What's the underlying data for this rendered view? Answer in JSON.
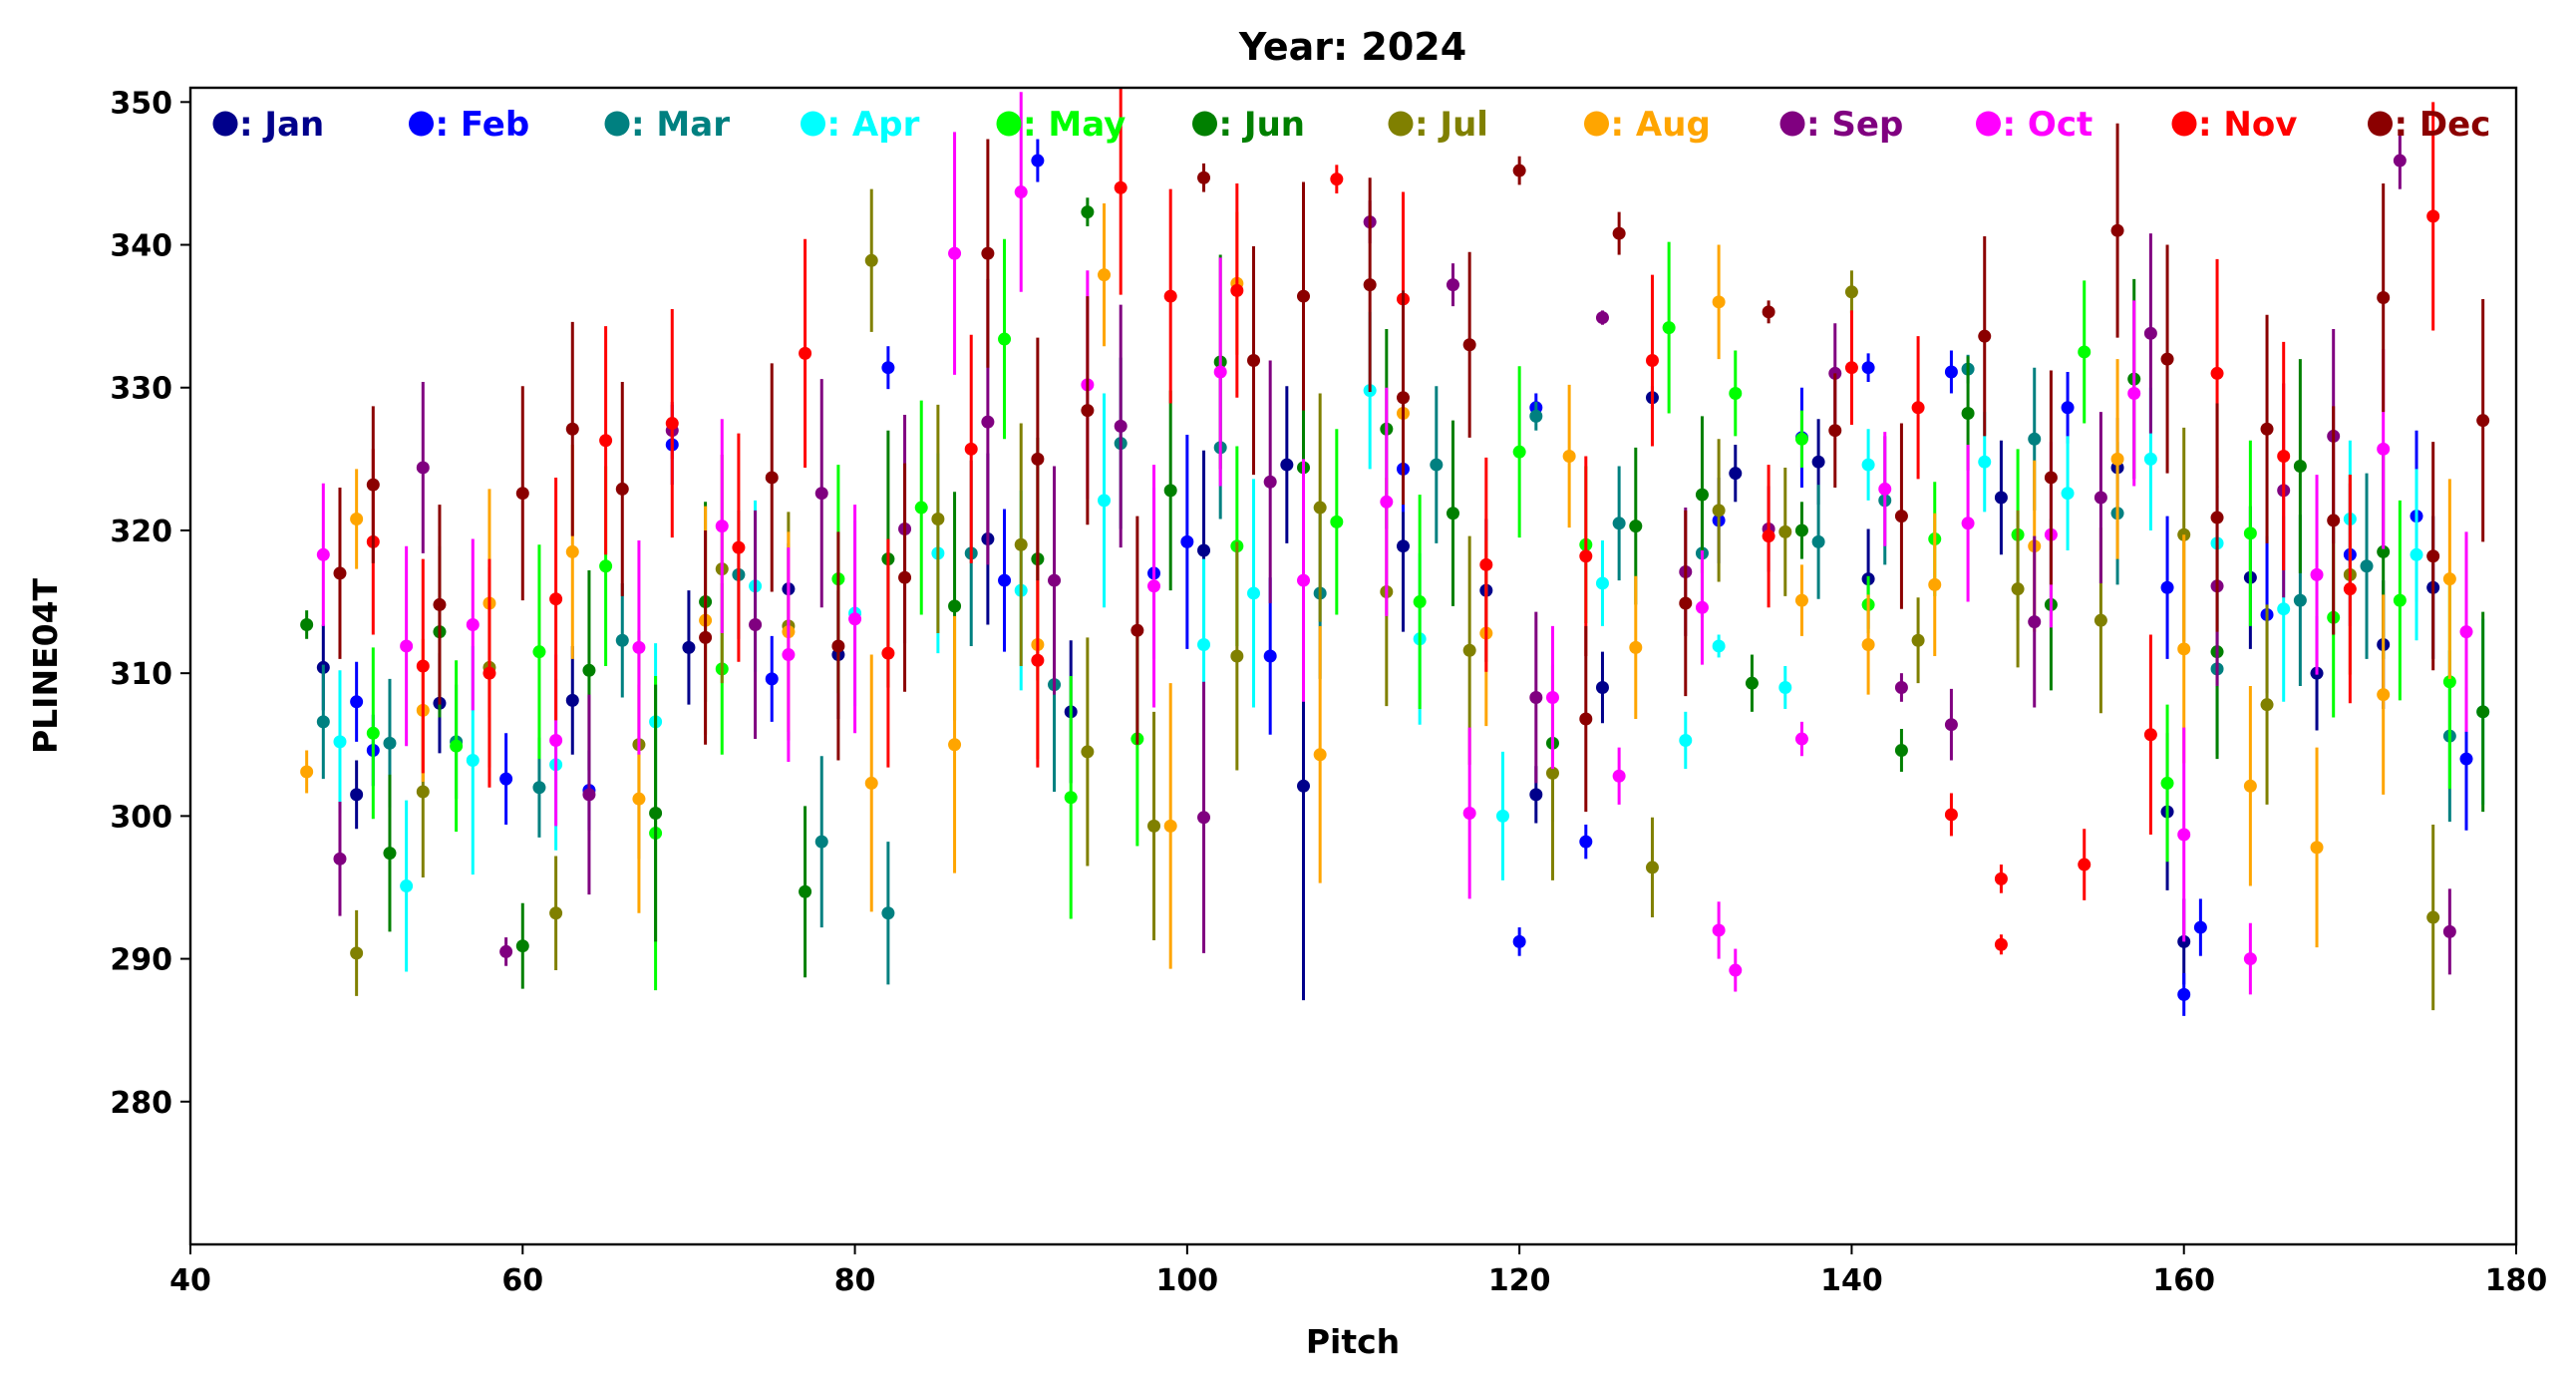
{
  "chart_data": {
    "type": "scatter",
    "title": "Year: 2024",
    "xlabel": "Pitch",
    "ylabel": "PLINE04T",
    "xlim": [
      40,
      180
    ],
    "ylim": [
      270,
      351
    ],
    "xticks": [
      40,
      60,
      80,
      100,
      120,
      140,
      160,
      180
    ],
    "yticks": [
      280,
      290,
      300,
      310,
      320,
      330,
      340,
      350
    ],
    "legend_position": "top",
    "series": [
      {
        "name": ": Jan",
        "color": "#00008b",
        "x": [
          48,
          50,
          55,
          63,
          70,
          76,
          79,
          88,
          93,
          101,
          106,
          107,
          113,
          118,
          121,
          125,
          128,
          133,
          138,
          141,
          149,
          156,
          159,
          160,
          164,
          168,
          172,
          175
        ],
        "y": [
          310.4,
          301.5,
          307.9,
          308.1,
          311.8,
          315.9,
          311.3,
          319.4,
          307.3,
          318.6,
          324.6,
          302.1,
          318.9,
          315.8,
          301.5,
          309.0,
          329.3,
          324.0,
          324.8,
          316.6,
          322.3,
          324.4,
          300.3,
          291.2,
          316.7,
          310.0,
          312.0,
          316.0
        ],
        "err": [
          3.0,
          2.4,
          3.5,
          3.8,
          4.0,
          3.2,
          4.5,
          6.0,
          5.0,
          7.0,
          5.5,
          15.0,
          6.0,
          5.0,
          2.0,
          2.5,
          0.8,
          2.0,
          3.0,
          3.5,
          4.0,
          3.5,
          5.5,
          3.0,
          5.0,
          4.0,
          4.5,
          5.0
        ]
      },
      {
        "name": ": Feb",
        "color": "#0000ff",
        "x": [
          50,
          51,
          59,
          64,
          69,
          75,
          82,
          89,
          91,
          98,
          100,
          105,
          113,
          120,
          121,
          124,
          132,
          137,
          141,
          146,
          153,
          159,
          160,
          161,
          165,
          170,
          174,
          177
        ],
        "y": [
          308.0,
          304.6,
          302.6,
          301.8,
          326.0,
          309.6,
          331.4,
          316.5,
          345.9,
          317.0,
          319.2,
          311.2,
          324.3,
          291.2,
          328.6,
          298.2,
          320.7,
          326.5,
          331.4,
          331.1,
          328.6,
          316.0,
          287.5,
          292.2,
          314.1,
          318.3,
          321.0,
          304.0
        ],
        "err": [
          2.8,
          2.5,
          3.2,
          2.8,
          2.8,
          3.0,
          1.5,
          5.0,
          1.5,
          6.0,
          7.5,
          5.5,
          3.0,
          1.0,
          1.0,
          1.2,
          3.0,
          3.5,
          1.0,
          1.5,
          2.5,
          5.0,
          1.5,
          2.0,
          5.5,
          5.0,
          6.0,
          5.0
        ]
      },
      {
        "name": ": Mar",
        "color": "#008080",
        "x": [
          48,
          52,
          56,
          61,
          66,
          73,
          78,
          82,
          87,
          92,
          96,
          102,
          108,
          115,
          121,
          126,
          131,
          138,
          142,
          147,
          151,
          156,
          162,
          167,
          171,
          176
        ],
        "y": [
          306.6,
          305.1,
          305.2,
          302.0,
          312.3,
          316.9,
          298.2,
          293.2,
          318.4,
          309.2,
          326.1,
          325.8,
          315.6,
          324.6,
          328.0,
          320.5,
          318.4,
          319.2,
          322.1,
          331.3,
          326.4,
          321.2,
          310.3,
          315.1,
          317.5,
          305.6
        ],
        "err": [
          4.0,
          4.5,
          4.0,
          3.5,
          4.0,
          4.5,
          6.0,
          5.0,
          6.5,
          7.5,
          6.0,
          5.0,
          6.0,
          5.5,
          1.0,
          4.0,
          4.5,
          4.0,
          4.5,
          1.0,
          5.0,
          5.0,
          6.0,
          6.0,
          6.5,
          6.0
        ]
      },
      {
        "name": ": Apr",
        "color": "#00ffff",
        "x": [
          49,
          53,
          57,
          62,
          68,
          74,
          80,
          85,
          90,
          95,
          101,
          104,
          111,
          114,
          119,
          125,
          130,
          132,
          136,
          141,
          148,
          153,
          158,
          162,
          166,
          170,
          174,
          178
        ],
        "y": [
          305.2,
          295.1,
          303.9,
          303.6,
          306.6,
          316.1,
          314.2,
          318.4,
          315.8,
          322.1,
          312.0,
          315.6,
          329.8,
          312.4,
          300.0,
          316.3,
          305.3,
          311.9,
          309.0,
          324.6,
          324.8,
          322.6,
          325.0,
          319.1,
          314.5,
          320.8,
          318.3,
          307.3
        ],
        "err": [
          5.0,
          6.0,
          8.0,
          6.0,
          5.5,
          6.0,
          6.5,
          7.0,
          7.0,
          7.5,
          6.0,
          8.0,
          5.5,
          6.0,
          4.5,
          3.0,
          2.0,
          0.8,
          1.5,
          2.5,
          3.5,
          4.0,
          5.0,
          6.0,
          6.5,
          5.5,
          6.0,
          6.5
        ]
      },
      {
        "name": ": May",
        "color": "#00ff00",
        "x": [
          51,
          56,
          61,
          65,
          68,
          72,
          79,
          84,
          89,
          93,
          97,
          103,
          109,
          114,
          120,
          124,
          129,
          133,
          137,
          141,
          145,
          150,
          154,
          159,
          164,
          169,
          173,
          176
        ],
        "y": [
          305.8,
          304.9,
          311.5,
          317.5,
          298.8,
          310.3,
          316.6,
          321.6,
          333.4,
          301.3,
          305.4,
          318.9,
          320.6,
          315.0,
          325.5,
          319.0,
          334.2,
          329.6,
          326.4,
          314.8,
          319.4,
          319.7,
          332.5,
          302.3,
          319.8,
          313.9,
          315.1,
          309.4
        ],
        "err": [
          6.0,
          6.0,
          7.5,
          7.0,
          11.0,
          6.0,
          8.0,
          7.5,
          7.0,
          8.5,
          7.5,
          7.0,
          6.5,
          7.5,
          6.0,
          5.5,
          6.0,
          3.0,
          2.0,
          2.0,
          4.0,
          6.0,
          5.0,
          5.5,
          6.5,
          7.0,
          7.0,
          7.5
        ]
      },
      {
        "name": ": Jun",
        "color": "#008000",
        "x": [
          47,
          52,
          55,
          60,
          64,
          68,
          71,
          77,
          82,
          86,
          91,
          94,
          99,
          102,
          107,
          112,
          116,
          122,
          127,
          131,
          134,
          137,
          143,
          147,
          152,
          157,
          162,
          167,
          172,
          178
        ],
        "y": [
          313.4,
          297.4,
          312.9,
          290.9,
          310.2,
          300.2,
          315.0,
          294.7,
          318.0,
          314.7,
          318.0,
          342.3,
          322.8,
          331.8,
          324.4,
          327.1,
          321.2,
          305.1,
          320.3,
          322.5,
          309.3,
          320.0,
          304.6,
          328.2,
          314.8,
          330.6,
          311.5,
          324.5,
          318.5,
          307.3
        ],
        "err": [
          1.0,
          5.5,
          6.0,
          3.0,
          7.0,
          9.0,
          7.0,
          6.0,
          9.0,
          8.0,
          8.5,
          1.0,
          7.0,
          7.5,
          7.0,
          7.0,
          6.5,
          5.5,
          5.5,
          5.5,
          2.0,
          2.0,
          1.5,
          4.0,
          6.0,
          7.0,
          7.5,
          7.5,
          7.5,
          7.0
        ]
      },
      {
        "name": ": Jul",
        "color": "#808000",
        "x": [
          50,
          54,
          58,
          62,
          67,
          72,
          76,
          81,
          85,
          90,
          94,
          98,
          103,
          108,
          112,
          117,
          122,
          128,
          132,
          136,
          140,
          144,
          150,
          155,
          160,
          165,
          170,
          175
        ],
        "y": [
          290.4,
          301.7,
          310.4,
          293.2,
          305.0,
          317.3,
          313.3,
          338.9,
          320.8,
          319.0,
          304.5,
          299.3,
          311.2,
          321.6,
          315.7,
          311.6,
          303.0,
          296.4,
          321.4,
          319.9,
          336.7,
          312.3,
          315.9,
          313.7,
          319.7,
          307.8,
          316.9,
          292.9
        ],
        "err": [
          3.0,
          6.0,
          7.0,
          4.0,
          8.0,
          8.0,
          8.0,
          5.0,
          8.0,
          8.5,
          8.0,
          8.0,
          8.0,
          8.0,
          8.0,
          8.0,
          7.5,
          3.5,
          5.0,
          4.5,
          1.5,
          3.0,
          5.5,
          6.5,
          7.5,
          7.0,
          7.0,
          6.5
        ]
      },
      {
        "name": ": Aug",
        "color": "#ffa500",
        "x": [
          47,
          50,
          54,
          58,
          63,
          67,
          71,
          76,
          81,
          86,
          91,
          95,
          99,
          103,
          108,
          113,
          118,
          123,
          127,
          132,
          137,
          141,
          145,
          151,
          156,
          160,
          164,
          168,
          172,
          176
        ],
        "y": [
          303.1,
          320.8,
          307.4,
          314.9,
          318.5,
          301.2,
          313.7,
          312.9,
          302.3,
          305.0,
          312.0,
          337.9,
          299.3,
          337.3,
          304.3,
          328.2,
          312.8,
          325.2,
          311.8,
          336.0,
          315.1,
          312.0,
          316.2,
          318.9,
          325.0,
          311.7,
          302.1,
          297.8,
          308.5,
          316.6
        ],
        "err": [
          1.5,
          3.5,
          5.0,
          8.0,
          7.5,
          8.0,
          8.0,
          7.0,
          9.0,
          9.0,
          8.0,
          5.0,
          10.0,
          5.0,
          9.0,
          6.0,
          6.5,
          5.0,
          5.0,
          4.0,
          2.5,
          3.5,
          5.0,
          6.0,
          7.0,
          8.0,
          7.0,
          7.0,
          7.0,
          7.0
        ]
      },
      {
        "name": ": Sep",
        "color": "#800080",
        "x": [
          49,
          54,
          59,
          64,
          69,
          74,
          78,
          83,
          88,
          92,
          96,
          101,
          105,
          111,
          116,
          121,
          125,
          130,
          135,
          139,
          143,
          146,
          151,
          155,
          158,
          162,
          166,
          169,
          173,
          176
        ],
        "y": [
          297.0,
          324.4,
          290.5,
          301.5,
          327.0,
          313.4,
          322.6,
          320.1,
          327.6,
          316.5,
          327.3,
          299.9,
          323.4,
          341.6,
          337.2,
          308.3,
          334.9,
          317.1,
          320.1,
          331.0,
          309.0,
          306.4,
          313.6,
          322.3,
          333.8,
          316.1,
          322.8,
          326.6,
          345.9,
          291.9
        ],
        "err": [
          4.0,
          6.0,
          1.0,
          7.0,
          2.0,
          8.0,
          8.0,
          8.0,
          10.0,
          8.0,
          8.5,
          9.5,
          8.5,
          1.5,
          1.5,
          6.0,
          0.5,
          4.5,
          3.0,
          3.5,
          1.0,
          2.5,
          6.0,
          6.0,
          7.0,
          7.0,
          7.5,
          7.5,
          2.0,
          3.0
        ]
      },
      {
        "name": ": Oct",
        "color": "#ff00ff",
        "x": [
          48,
          53,
          57,
          62,
          67,
          72,
          76,
          80,
          86,
          90,
          94,
          98,
          102,
          107,
          112,
          117,
          122,
          126,
          131,
          132,
          133,
          137,
          142,
          147,
          152,
          157,
          160,
          164,
          168,
          172,
          177
        ],
        "y": [
          318.3,
          311.9,
          313.4,
          305.3,
          311.8,
          320.3,
          311.3,
          313.8,
          339.4,
          343.7,
          330.2,
          316.1,
          331.1,
          316.5,
          322.0,
          300.2,
          308.3,
          302.8,
          314.6,
          292.0,
          289.2,
          305.4,
          322.9,
          320.5,
          319.7,
          329.6,
          298.7,
          290.0,
          316.9,
          325.7,
          312.9
        ],
        "err": [
          5.0,
          7.0,
          6.0,
          6.0,
          7.5,
          7.5,
          7.5,
          8.0,
          8.5,
          7.0,
          8.0,
          8.5,
          8.0,
          8.5,
          8.0,
          6.0,
          5.0,
          2.0,
          4.0,
          2.0,
          1.5,
          1.2,
          4.0,
          5.5,
          6.5,
          6.5,
          7.5,
          2.5,
          7.0,
          7.0,
          7.0
        ]
      },
      {
        "name": ": Nov",
        "color": "#ff0000",
        "x": [
          51,
          54,
          58,
          62,
          65,
          69,
          73,
          77,
          82,
          87,
          91,
          96,
          99,
          103,
          109,
          113,
          118,
          124,
          128,
          135,
          140,
          144,
          146,
          149,
          149,
          154,
          158,
          162,
          166,
          170,
          175
        ],
        "y": [
          319.2,
          310.5,
          310.0,
          315.2,
          326.3,
          327.5,
          318.8,
          332.4,
          311.4,
          325.7,
          310.9,
          344.0,
          336.4,
          336.8,
          344.6,
          336.2,
          317.6,
          318.2,
          331.9,
          319.6,
          331.4,
          328.6,
          300.1,
          295.6,
          291.0,
          296.6,
          305.7,
          331.0,
          325.2,
          315.9,
          342.0
        ],
        "err": [
          6.5,
          7.5,
          8.0,
          8.5,
          8.0,
          8.0,
          8.0,
          8.0,
          8.0,
          8.0,
          7.5,
          7.5,
          7.5,
          7.5,
          1.0,
          7.5,
          7.5,
          7.0,
          6.0,
          5.0,
          4.0,
          5.0,
          1.5,
          1.0,
          0.7,
          2.5,
          7.0,
          8.0,
          8.0,
          8.0,
          8.0
        ]
      },
      {
        "name": ": Dec",
        "color": "#8b0000",
        "x": [
          49,
          51,
          55,
          60,
          63,
          66,
          71,
          75,
          79,
          83,
          88,
          91,
          94,
          97,
          101,
          104,
          107,
          111,
          113,
          117,
          120,
          124,
          126,
          130,
          135,
          139,
          143,
          148,
          152,
          156,
          159,
          162,
          165,
          169,
          172,
          175,
          178
        ],
        "y": [
          317.0,
          323.2,
          314.8,
          322.6,
          327.1,
          322.9,
          312.5,
          323.7,
          311.9,
          316.7,
          339.4,
          325.0,
          328.4,
          313.0,
          344.7,
          331.9,
          336.4,
          337.2,
          329.3,
          333.0,
          345.2,
          306.8,
          340.8,
          314.9,
          335.3,
          327.0,
          321.0,
          333.6,
          323.7,
          341.0,
          332.0,
          320.9,
          327.1,
          320.7,
          336.3,
          318.2,
          327.7
        ],
        "err": [
          6.0,
          5.5,
          7.0,
          7.5,
          7.5,
          7.5,
          7.5,
          8.0,
          8.0,
          8.0,
          8.0,
          8.5,
          8.0,
          8.0,
          1.0,
          8.0,
          8.0,
          7.5,
          7.5,
          6.5,
          1.0,
          6.5,
          1.5,
          6.5,
          0.8,
          4.0,
          6.5,
          7.0,
          7.5,
          7.5,
          8.0,
          8.0,
          8.0,
          8.0,
          8.0,
          8.0,
          8.5
        ]
      }
    ]
  }
}
